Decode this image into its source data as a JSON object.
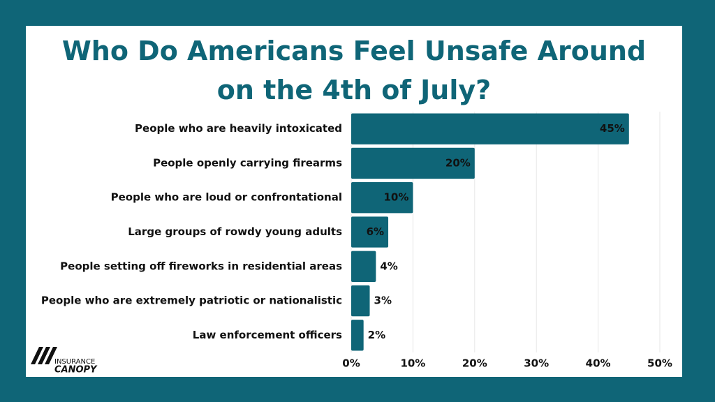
{
  "chart_data": {
    "type": "bar",
    "orientation": "horizontal",
    "title": "Who Do Americans Feel Unsafe Around on the 4th of July?",
    "categories": [
      "People who are heavily intoxicated",
      "People openly carrying firearms",
      "People who are loud or confrontational",
      "Large groups of rowdy young adults",
      "People setting off fireworks in residential areas",
      "People who are extremely patriotic or nationalistic",
      "Law enforcement officers"
    ],
    "values": [
      45,
      20,
      10,
      6,
      4,
      3,
      2
    ],
    "value_labels": [
      "45%",
      "20%",
      "10%",
      "6%",
      "4%",
      "3%",
      "2%"
    ],
    "color": "#0f6577",
    "xlim": [
      0,
      50
    ],
    "xticks": [
      {
        "value": 0,
        "label": "0%"
      },
      {
        "value": 10,
        "label": "10%"
      },
      {
        "value": 20,
        "label": "20%"
      },
      {
        "value": 30,
        "label": "30%"
      },
      {
        "value": 40,
        "label": "40%"
      },
      {
        "value": 50,
        "label": "50%"
      }
    ],
    "grid": true
  },
  "logo": {
    "top": "INSURANCE",
    "bottom": "CANOPY"
  }
}
